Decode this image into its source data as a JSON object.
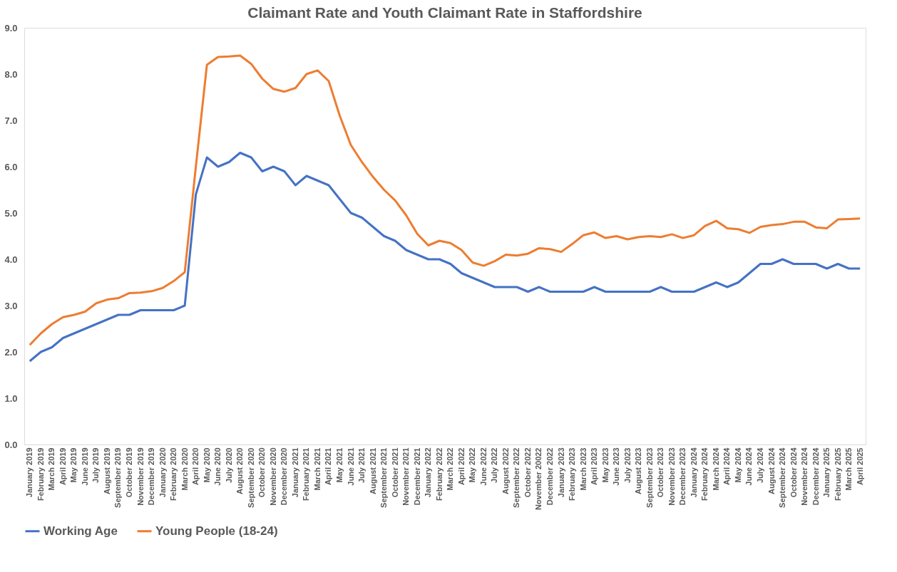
{
  "chart_data": {
    "type": "line",
    "title": "Claimant Rate and Youth Claimant Rate in Staffordshire",
    "categories": [
      "January 2019",
      "February 2019",
      "March 2019",
      "April 2019",
      "May 2019",
      "June 2019",
      "July 2019",
      "August 2019",
      "September 2019",
      "October 2019",
      "November 2019",
      "December 2019",
      "January 2020",
      "February 2020",
      "March 2020",
      "April 2020",
      "May 2020",
      "June 2020",
      "July 2020",
      "August 2020",
      "September 2020",
      "October 2020",
      "November 2020",
      "December 2020",
      "January 2021",
      "February 2021",
      "March 2021",
      "April 2021",
      "May 2021",
      "June 2021",
      "July 2021",
      "August 2021",
      "September 2021",
      "October 2021",
      "November 2021",
      "December 2021",
      "January 2022",
      "February 2022",
      "March 2022",
      "April 2022",
      "May 2022",
      "June 2022",
      "July 2022",
      "August 2022",
      "September 2022",
      "October 2022",
      "November 20022",
      "December 2022",
      "January 2023",
      "February 2023",
      "March 2023",
      "April 2023",
      "May 2023",
      "June 2023",
      "July 2023",
      "August 2023",
      "September 2023",
      "October 2023",
      "November 2023",
      "December 2023",
      "January 2024",
      "February 2024",
      "March 2024",
      "April 2024",
      "May 2024",
      "June 2024",
      "July 2024",
      "August 2024",
      "September 2024",
      "October 2024",
      "November 2024",
      "December 2024",
      "January 2025",
      "February 2025",
      "March 2025",
      "April 2025"
    ],
    "series": [
      {
        "name": "Working Age",
        "color": "#4472c4",
        "values": [
          1.8,
          2.0,
          2.1,
          2.3,
          2.4,
          2.5,
          2.6,
          2.7,
          2.8,
          2.8,
          2.9,
          2.9,
          2.9,
          2.9,
          3.0,
          5.4,
          6.2,
          6.0,
          6.1,
          6.3,
          6.2,
          5.9,
          6.0,
          5.9,
          5.6,
          5.8,
          5.7,
          5.6,
          5.3,
          5.0,
          4.9,
          4.7,
          4.5,
          4.4,
          4.2,
          4.1,
          4.0,
          4.0,
          3.9,
          3.7,
          3.6,
          3.5,
          3.4,
          3.4,
          3.4,
          3.3,
          3.4,
          3.3,
          3.3,
          3.3,
          3.3,
          3.4,
          3.3,
          3.3,
          3.3,
          3.3,
          3.3,
          3.4,
          3.3,
          3.3,
          3.3,
          3.4,
          3.5,
          3.4,
          3.5,
          3.7,
          3.9,
          3.9,
          4.0,
          3.9,
          3.9,
          3.9,
          3.8,
          3.9,
          3.8,
          3.8
        ]
      },
      {
        "name": "Young People (18-24)",
        "color": "#ed7d31",
        "values": [
          2.15,
          2.4,
          2.6,
          2.75,
          2.8,
          2.87,
          3.05,
          3.13,
          3.16,
          3.27,
          3.28,
          3.31,
          3.38,
          3.53,
          3.72,
          6.0,
          8.2,
          8.37,
          8.38,
          8.4,
          8.22,
          7.9,
          7.68,
          7.62,
          7.7,
          8.0,
          8.08,
          7.85,
          7.1,
          6.47,
          6.1,
          5.78,
          5.5,
          5.27,
          4.95,
          4.55,
          4.3,
          4.4,
          4.35,
          4.2,
          3.93,
          3.86,
          3.96,
          4.1,
          4.08,
          4.12,
          4.24,
          4.22,
          4.16,
          4.33,
          4.52,
          4.58,
          4.46,
          4.5,
          4.43,
          4.48,
          4.5,
          4.48,
          4.54,
          4.46,
          4.52,
          4.72,
          4.83,
          4.67,
          4.65,
          4.57,
          4.7,
          4.74,
          4.76,
          4.81,
          4.81,
          4.69,
          4.67,
          4.86,
          4.87,
          4.88
        ]
      }
    ],
    "ylim": [
      0,
      9
    ],
    "yticks": [
      {
        "value": 0,
        "label": "0.0"
      },
      {
        "value": 1,
        "label": "1.0"
      },
      {
        "value": 2,
        "label": "2.0"
      },
      {
        "value": 3,
        "label": "3.0"
      },
      {
        "value": 4,
        "label": "4.0"
      },
      {
        "value": 5,
        "label": "5.0"
      },
      {
        "value": 6,
        "label": "6.0"
      },
      {
        "value": 7,
        "label": "7.0"
      },
      {
        "value": 8,
        "label": "8.0"
      },
      {
        "value": 9,
        "label": "9.0"
      }
    ],
    "grid": false,
    "legend": "bottom",
    "marker": "none",
    "line_style": "solid"
  }
}
